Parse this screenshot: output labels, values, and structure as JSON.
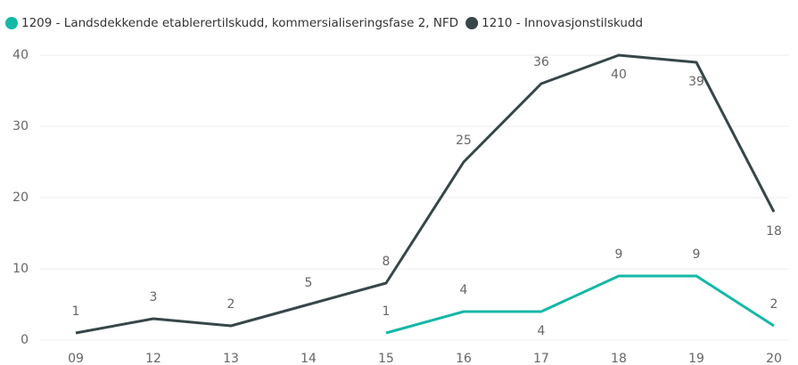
{
  "chart_data": {
    "type": "line",
    "categories": [
      "09",
      "12",
      "13",
      "14",
      "15",
      "16",
      "17",
      "18",
      "19",
      "20"
    ],
    "series": [
      {
        "name": "1209 - Landsdekkende etablerertilskudd, kommersialiseringsfase 2, NFD",
        "color": "#14b8a6",
        "values": [
          null,
          null,
          null,
          null,
          1,
          4,
          4,
          9,
          9,
          2
        ]
      },
      {
        "name": "1210 - Innovasjonstilskudd",
        "color": "#374649",
        "values": [
          1,
          3,
          2,
          5,
          8,
          25,
          36,
          40,
          39,
          18
        ]
      }
    ],
    "ylim": [
      0,
      40
    ],
    "yticks": [
      0,
      10,
      20,
      30,
      40
    ],
    "grid": true,
    "legend": "top"
  }
}
